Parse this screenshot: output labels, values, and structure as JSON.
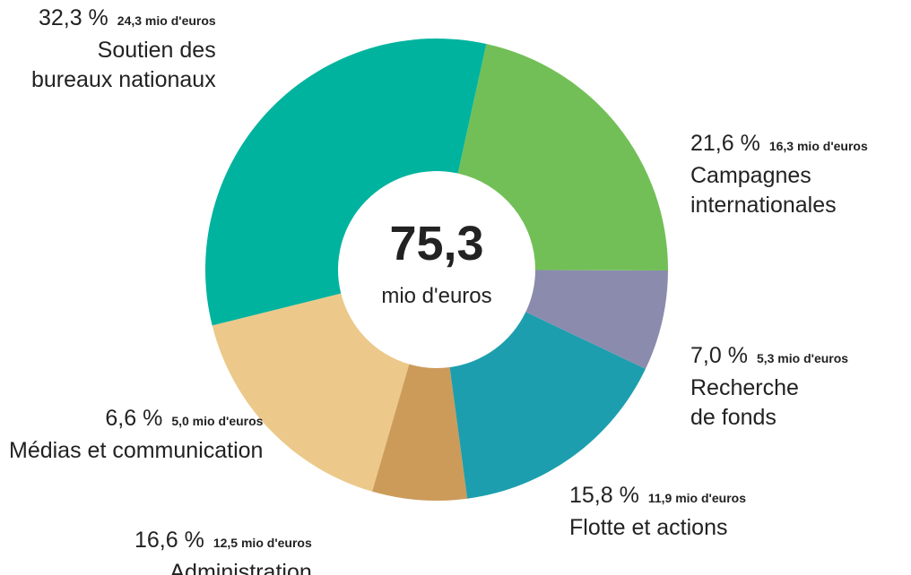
{
  "chart_data": {
    "type": "donut",
    "center_label": "75,3",
    "center_unit": "mio d'euros",
    "categories": [
      "Soutien des\nbureaux nationaux",
      "Campagnes\ninternationales",
      "Recherche\nde fonds",
      "Flotte et actions",
      "Médias et communication",
      "Administration"
    ],
    "values": [
      32.3,
      21.6,
      7.0,
      15.8,
      6.6,
      16.6
    ],
    "value_labels": [
      "32,3 %",
      "21,6 %",
      "7,0 %",
      "15,8 %",
      "6,6 %",
      "16,6 %"
    ],
    "amount_labels": [
      "24,3 mio d'euros",
      "16,3 mio d'euros",
      "5,3 mio d'euros",
      "11,9 mio d'euros",
      "5,0 mio d'euros",
      "12,5 mio d'euros"
    ],
    "colors": [
      "#00b39e",
      "#72bf57",
      "#8b8bae",
      "#1c9eae",
      "#cc9b5a",
      "#ecc98a"
    ]
  }
}
